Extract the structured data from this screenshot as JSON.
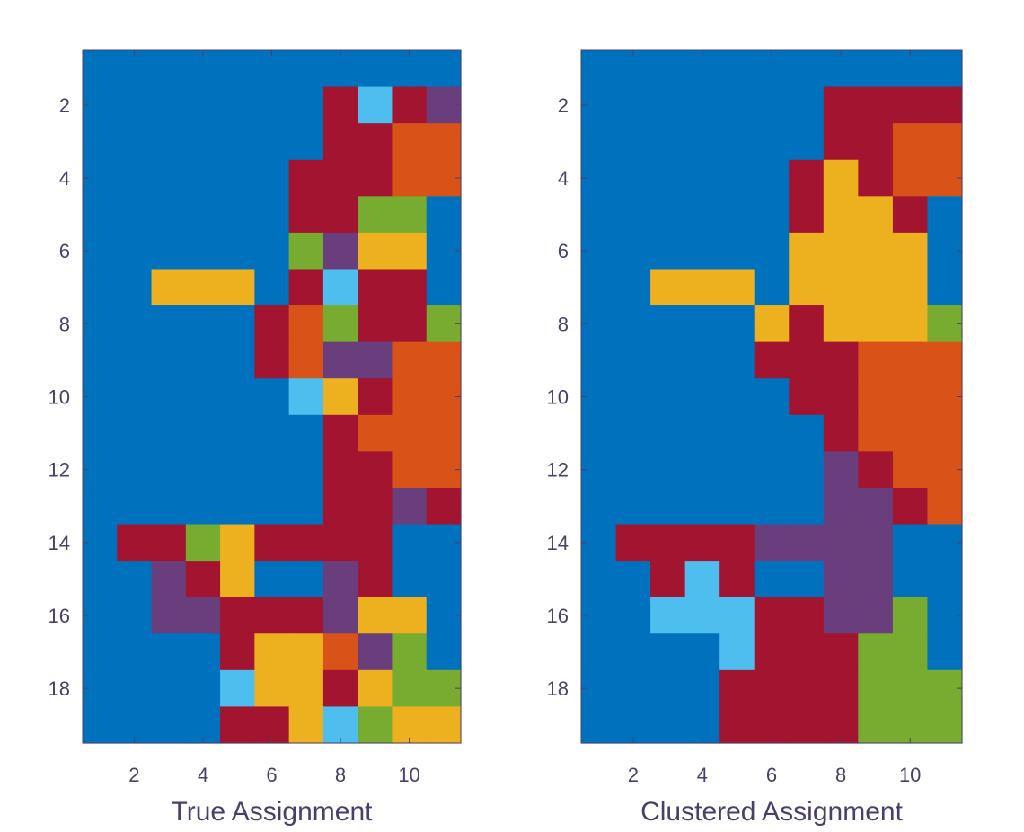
{
  "palette": {
    "0": "#0072BD",
    "1": "#A2142F",
    "2": "#4DBEEE",
    "3": "#6A3D7C",
    "4": "#D95319",
    "5": "#77AC30",
    "6": "#EDB120"
  },
  "chart_data": [
    {
      "type": "heatmap",
      "title": "",
      "xlabel": "True Assignment",
      "ylabel": "",
      "x_ticks": [
        2,
        4,
        6,
        8,
        10
      ],
      "y_ticks": [
        2,
        4,
        6,
        8,
        10,
        12,
        14,
        16,
        18
      ],
      "xlim": [
        0.5,
        11.5
      ],
      "ylim": [
        0.5,
        19.5
      ],
      "y_direction": "reverse",
      "columns": 11,
      "rows": 19,
      "grid": false,
      "values": [
        [
          0,
          0,
          0,
          0,
          0,
          0,
          0,
          0,
          0,
          0,
          0
        ],
        [
          0,
          0,
          0,
          0,
          0,
          0,
          0,
          1,
          2,
          1,
          3
        ],
        [
          0,
          0,
          0,
          0,
          0,
          0,
          0,
          1,
          1,
          4,
          4
        ],
        [
          0,
          0,
          0,
          0,
          0,
          0,
          1,
          1,
          1,
          4,
          4
        ],
        [
          0,
          0,
          0,
          0,
          0,
          0,
          1,
          1,
          5,
          5,
          0
        ],
        [
          0,
          0,
          0,
          0,
          0,
          0,
          5,
          3,
          6,
          6,
          0
        ],
        [
          0,
          0,
          6,
          6,
          6,
          0,
          1,
          2,
          1,
          1,
          0
        ],
        [
          0,
          0,
          0,
          0,
          0,
          1,
          4,
          5,
          1,
          1,
          5
        ],
        [
          0,
          0,
          0,
          0,
          0,
          1,
          4,
          3,
          3,
          4,
          4
        ],
        [
          0,
          0,
          0,
          0,
          0,
          0,
          2,
          6,
          1,
          4,
          4
        ],
        [
          0,
          0,
          0,
          0,
          0,
          0,
          0,
          1,
          4,
          4,
          4
        ],
        [
          0,
          0,
          0,
          0,
          0,
          0,
          0,
          1,
          1,
          4,
          4
        ],
        [
          0,
          0,
          0,
          0,
          0,
          0,
          0,
          1,
          1,
          3,
          1
        ],
        [
          0,
          1,
          1,
          5,
          6,
          1,
          1,
          1,
          1,
          0,
          0
        ],
        [
          0,
          0,
          3,
          1,
          6,
          0,
          0,
          3,
          1,
          0,
          0
        ],
        [
          0,
          0,
          3,
          3,
          1,
          1,
          1,
          3,
          6,
          6,
          0
        ],
        [
          0,
          0,
          0,
          0,
          1,
          6,
          6,
          4,
          3,
          5,
          0
        ],
        [
          0,
          0,
          0,
          0,
          2,
          6,
          6,
          1,
          6,
          5,
          5
        ],
        [
          0,
          0,
          0,
          0,
          1,
          1,
          6,
          2,
          5,
          6,
          6
        ]
      ]
    },
    {
      "type": "heatmap",
      "title": "",
      "xlabel": "Clustered Assignment",
      "ylabel": "",
      "x_ticks": [
        2,
        4,
        6,
        8,
        10
      ],
      "y_ticks": [
        2,
        4,
        6,
        8,
        10,
        12,
        14,
        16,
        18
      ],
      "xlim": [
        0.5,
        11.5
      ],
      "ylim": [
        0.5,
        19.5
      ],
      "y_direction": "reverse",
      "columns": 11,
      "rows": 19,
      "grid": false,
      "values": [
        [
          0,
          0,
          0,
          0,
          0,
          0,
          0,
          0,
          0,
          0,
          0
        ],
        [
          0,
          0,
          0,
          0,
          0,
          0,
          0,
          1,
          1,
          1,
          1
        ],
        [
          0,
          0,
          0,
          0,
          0,
          0,
          0,
          1,
          1,
          4,
          4
        ],
        [
          0,
          0,
          0,
          0,
          0,
          0,
          1,
          6,
          1,
          4,
          4
        ],
        [
          0,
          0,
          0,
          0,
          0,
          0,
          1,
          6,
          6,
          1,
          0
        ],
        [
          0,
          0,
          0,
          0,
          0,
          0,
          6,
          6,
          6,
          6,
          0
        ],
        [
          0,
          0,
          6,
          6,
          6,
          0,
          6,
          6,
          6,
          6,
          0
        ],
        [
          0,
          0,
          0,
          0,
          0,
          6,
          1,
          6,
          6,
          6,
          5
        ],
        [
          0,
          0,
          0,
          0,
          0,
          1,
          1,
          1,
          4,
          4,
          4
        ],
        [
          0,
          0,
          0,
          0,
          0,
          0,
          1,
          1,
          4,
          4,
          4
        ],
        [
          0,
          0,
          0,
          0,
          0,
          0,
          0,
          1,
          4,
          4,
          4
        ],
        [
          0,
          0,
          0,
          0,
          0,
          0,
          0,
          3,
          1,
          4,
          4
        ],
        [
          0,
          0,
          0,
          0,
          0,
          0,
          0,
          3,
          3,
          1,
          4
        ],
        [
          0,
          1,
          1,
          1,
          1,
          3,
          3,
          3,
          3,
          0,
          0
        ],
        [
          0,
          0,
          1,
          2,
          1,
          0,
          0,
          3,
          3,
          0,
          0
        ],
        [
          0,
          0,
          2,
          2,
          2,
          1,
          1,
          3,
          3,
          5,
          0
        ],
        [
          0,
          0,
          0,
          0,
          2,
          1,
          1,
          1,
          5,
          5,
          0
        ],
        [
          0,
          0,
          0,
          0,
          1,
          1,
          1,
          1,
          5,
          5,
          5
        ],
        [
          0,
          0,
          0,
          0,
          1,
          1,
          1,
          1,
          5,
          5,
          5
        ]
      ]
    }
  ]
}
